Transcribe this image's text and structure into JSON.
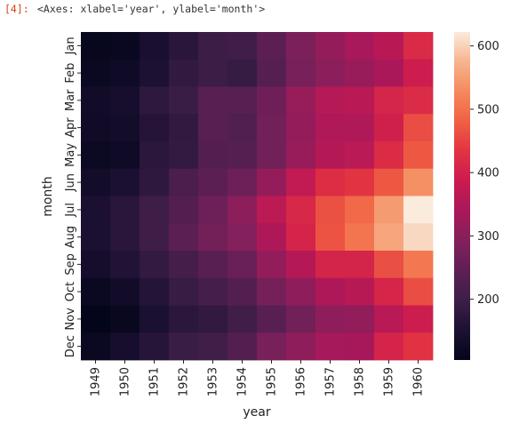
{
  "cell": {
    "prompt": "[4]:",
    "output_text": "<Axes: xlabel='year', ylabel='month'>"
  },
  "chart_data": {
    "type": "heatmap",
    "xlabel": "year",
    "ylabel": "month",
    "x": [
      "1949",
      "1950",
      "1951",
      "1952",
      "1953",
      "1954",
      "1955",
      "1956",
      "1957",
      "1958",
      "1959",
      "1960"
    ],
    "y": [
      "Jan",
      "Feb",
      "Mar",
      "Apr",
      "May",
      "Jun",
      "Jul",
      "Aug",
      "Sep",
      "Oct",
      "Nov",
      "Dec"
    ],
    "values": [
      [
        112,
        115,
        145,
        171,
        196,
        204,
        242,
        284,
        315,
        340,
        360,
        417
      ],
      [
        118,
        126,
        150,
        180,
        196,
        188,
        233,
        277,
        301,
        318,
        342,
        391
      ],
      [
        132,
        141,
        178,
        193,
        236,
        235,
        267,
        317,
        356,
        362,
        406,
        419
      ],
      [
        129,
        135,
        163,
        181,
        235,
        227,
        269,
        313,
        348,
        348,
        396,
        461
      ],
      [
        121,
        125,
        172,
        183,
        229,
        234,
        270,
        318,
        355,
        363,
        420,
        472
      ],
      [
        135,
        149,
        178,
        218,
        243,
        264,
        315,
        374,
        422,
        435,
        472,
        535
      ],
      [
        148,
        170,
        199,
        230,
        264,
        302,
        364,
        413,
        465,
        491,
        548,
        622
      ],
      [
        148,
        170,
        199,
        242,
        272,
        293,
        347,
        405,
        467,
        505,
        559,
        606
      ],
      [
        136,
        158,
        184,
        209,
        237,
        259,
        312,
        355,
        404,
        404,
        463,
        508
      ],
      [
        119,
        133,
        162,
        191,
        211,
        229,
        274,
        306,
        347,
        359,
        407,
        461
      ],
      [
        104,
        114,
        146,
        172,
        180,
        203,
        237,
        271,
        305,
        310,
        362,
        390
      ],
      [
        118,
        140,
        166,
        194,
        201,
        229,
        278,
        306,
        336,
        337,
        405,
        432
      ]
    ],
    "zlim": [
      104,
      622
    ],
    "colorbar_ticks": [
      200,
      300,
      400,
      500,
      600
    ],
    "colormap": "rocket",
    "colormap_stops": [
      "#03051a",
      "#1d1133",
      "#3d1e47",
      "#5e1f55",
      "#83205b",
      "#a9185a",
      "#cb1b4f",
      "#e13342",
      "#f06043",
      "#f5895d",
      "#f6b48e",
      "#faebdd"
    ]
  }
}
